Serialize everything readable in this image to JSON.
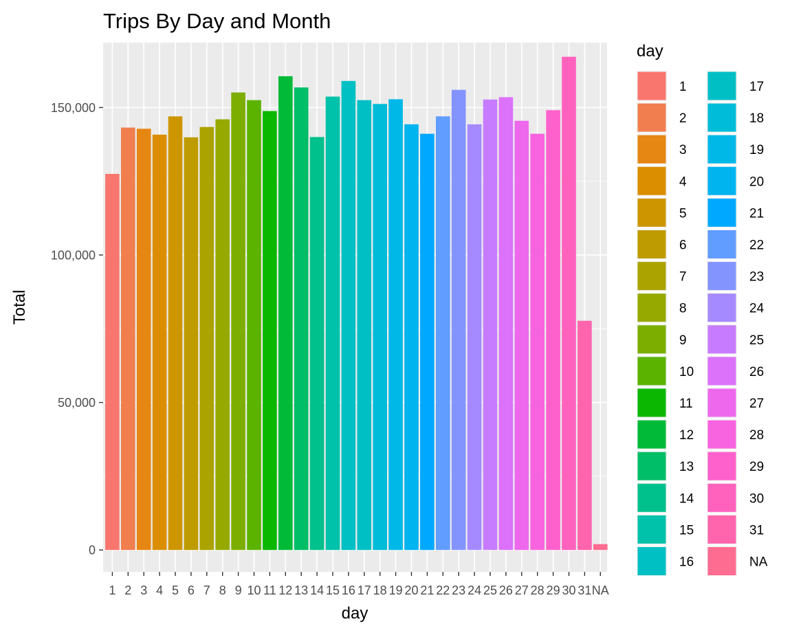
{
  "chart_data": {
    "type": "bar",
    "title": "Trips By Day and Month",
    "xlabel": "day",
    "ylabel": "Total",
    "ylim": [
      -7400,
      172000
    ],
    "yticks": [
      0,
      50000,
      100000,
      150000
    ],
    "ytick_labels": [
      "0",
      "50,000",
      "100,000",
      "150,000"
    ],
    "categories": [
      "1",
      "2",
      "3",
      "4",
      "5",
      "6",
      "7",
      "8",
      "9",
      "10",
      "11",
      "12",
      "13",
      "14",
      "15",
      "16",
      "17",
      "18",
      "19",
      "20",
      "21",
      "22",
      "23",
      "24",
      "25",
      "26",
      "27",
      "28",
      "29",
      "30",
      "31",
      "NA"
    ],
    "values": [
      127500,
      143200,
      142800,
      140800,
      147000,
      139900,
      143400,
      146000,
      155100,
      152500,
      148800,
      160600,
      156800,
      140000,
      153700,
      159000,
      152500,
      151200,
      152800,
      144300,
      141100,
      147000,
      156000,
      144300,
      152700,
      153500,
      145500,
      141100,
      149100,
      167200,
      77700,
      2000
    ],
    "colors": [
      "#F8766D",
      "#F07E4F",
      "#E68613",
      "#DB8E00",
      "#CD9600",
      "#BE9C00",
      "#ABA300",
      "#96A900",
      "#7CAE00",
      "#5BB300",
      "#0CB702",
      "#00BA38",
      "#00BE67",
      "#00C08B",
      "#00C1A9",
      "#00C0C4",
      "#00BFC4",
      "#00BCD8",
      "#00B8E7",
      "#00B4F0",
      "#00A9FF",
      "#619CFF",
      "#8494FF",
      "#A58AFF",
      "#C77CFF",
      "#DC71FA",
      "#ED68ED",
      "#F863DF",
      "#FF61CC",
      "#FF62BC",
      "#FF65AC",
      "#FF6C91"
    ],
    "grid": true,
    "legend": {
      "title": "day",
      "position": "right",
      "columns": 2
    }
  }
}
